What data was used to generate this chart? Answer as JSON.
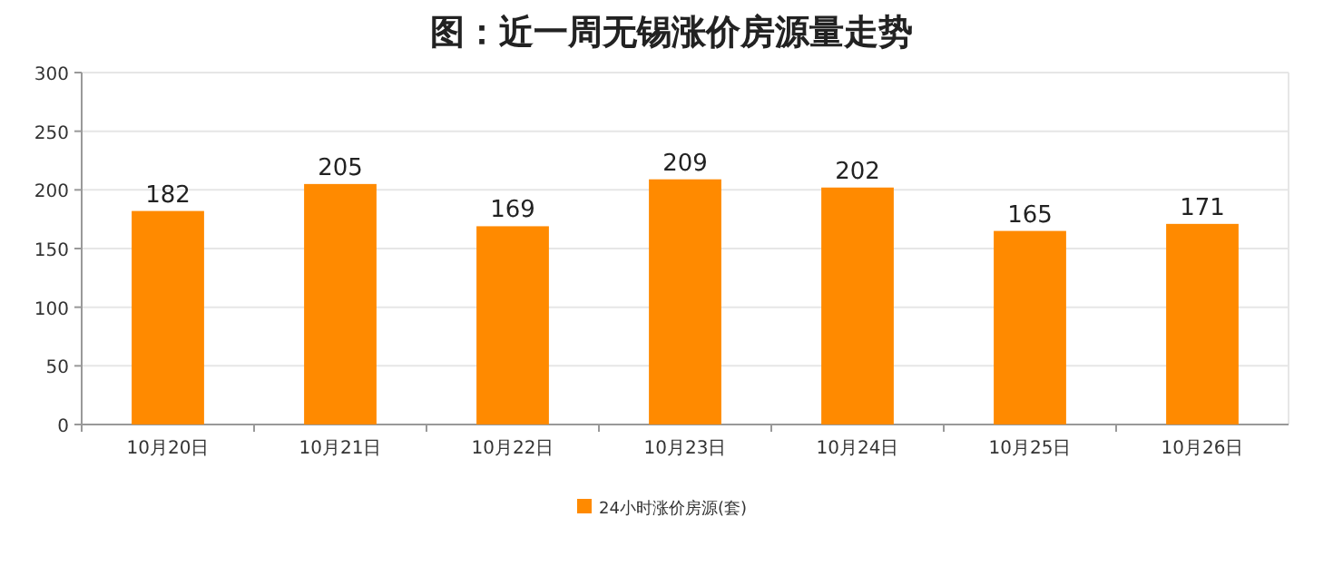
{
  "chart_data": {
    "type": "bar",
    "title": "图：近一周无锡涨价房源量走势",
    "categories": [
      "10月20日",
      "10月21日",
      "10月22日",
      "10月23日",
      "10月24日",
      "10月25日",
      "10月26日"
    ],
    "series": [
      {
        "name": "24小时涨价房源(套)",
        "color": "#ff8a00",
        "values": [
          182,
          205,
          169,
          209,
          202,
          165,
          171
        ]
      }
    ],
    "ylim": [
      0,
      300
    ],
    "yticks": [
      0,
      50,
      100,
      150,
      200,
      250,
      300
    ],
    "grid": "y",
    "legend": "bottom",
    "data_labels": true
  }
}
